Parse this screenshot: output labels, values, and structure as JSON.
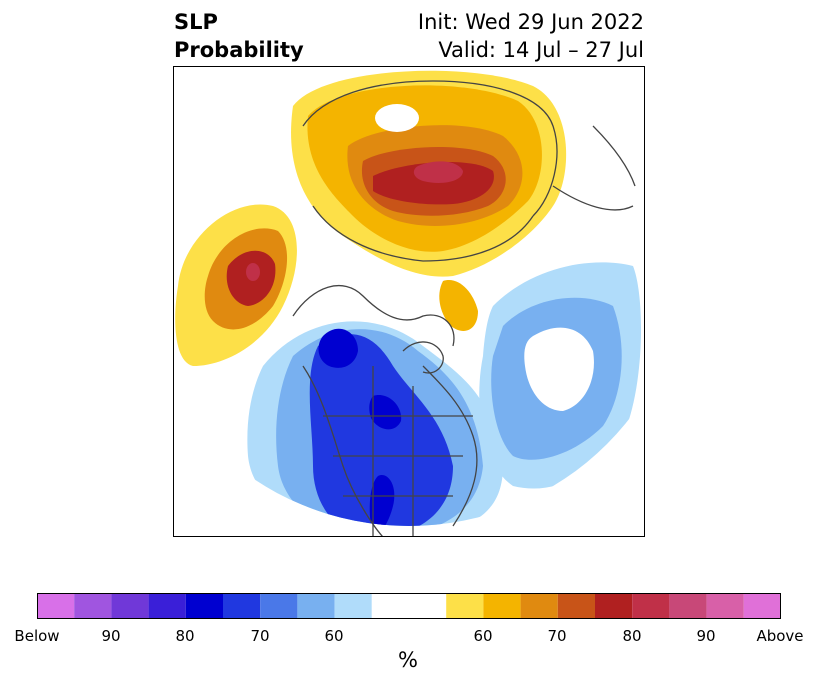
{
  "title": {
    "left_line1": "SLP",
    "left_line2": "Probability",
    "right_line1": "Init: Wed 29 Jun 2022",
    "right_line2": "Valid: 14 Jul – 27 Jul"
  },
  "colorbar": {
    "unit_label": "%",
    "colors": [
      "#d870e8",
      "#a055e0",
      "#7038d8",
      "#3a1fd8",
      "#0000d0",
      "#2038e0",
      "#4a78e8",
      "#78b0f0",
      "#b0dcfa",
      "#ffffff",
      "#fde048",
      "#f4b400",
      "#e08a10",
      "#c85418",
      "#b02020",
      "#c03048",
      "#c84878",
      "#d860a8",
      "#e070d8"
    ],
    "tick_labels": [
      "Below",
      "90",
      "80",
      "70",
      "60",
      "60",
      "70",
      "80",
      "90",
      "Above"
    ]
  }
}
